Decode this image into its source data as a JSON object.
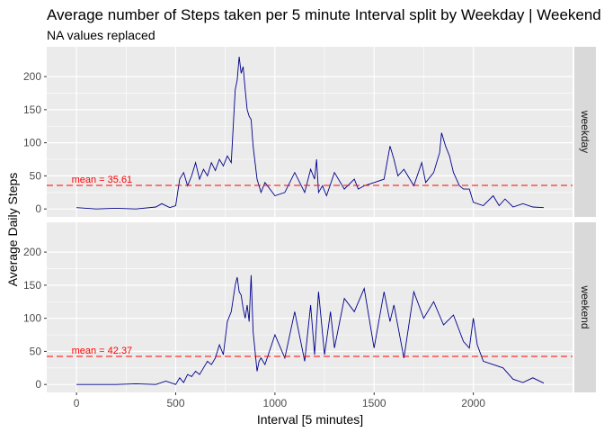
{
  "chart_data": {
    "type": "line",
    "title": "Average number of Steps taken per 5 minute Interval split by Weekday | Weekend",
    "subtitle": "NA values replaced",
    "xlabel": "Interval [5 minutes]",
    "ylabel": "Average Daily Steps",
    "xlim": [
      -150,
      2500
    ],
    "ylim": [
      -12,
      245
    ],
    "x_ticks": [
      0,
      500,
      1000,
      1500,
      2000
    ],
    "y_ticks": [
      0,
      50,
      100,
      150,
      200
    ],
    "grid": true,
    "colors": {
      "line": "#00008b",
      "mean_line": "#ff0000",
      "panel_bg": "#ebebeb",
      "strip_bg": "#d9d9d9",
      "grid": "#ffffff"
    },
    "panels": [
      {
        "facet": "weekday",
        "mean": 35.61,
        "annotation": "mean = 35.61",
        "x": [
          0,
          100,
          200,
          300,
          400,
          430,
          470,
          500,
          520,
          540,
          560,
          580,
          600,
          620,
          640,
          660,
          680,
          700,
          720,
          740,
          760,
          780,
          800,
          810,
          820,
          830,
          840,
          850,
          860,
          870,
          880,
          890,
          900,
          910,
          920,
          930,
          950,
          1000,
          1050,
          1100,
          1150,
          1180,
          1200,
          1210,
          1220,
          1240,
          1260,
          1300,
          1350,
          1400,
          1420,
          1450,
          1500,
          1550,
          1580,
          1600,
          1620,
          1650,
          1700,
          1740,
          1760,
          1800,
          1820,
          1830,
          1840,
          1860,
          1880,
          1900,
          1930,
          1950,
          1980,
          2000,
          2050,
          2100,
          2130,
          2160,
          2200,
          2250,
          2300,
          2355
        ],
        "y": [
          2,
          0,
          1,
          0,
          3,
          8,
          2,
          5,
          45,
          55,
          35,
          50,
          70,
          45,
          60,
          50,
          70,
          58,
          75,
          65,
          80,
          70,
          180,
          195,
          230,
          205,
          215,
          180,
          150,
          140,
          135,
          95,
          70,
          45,
          35,
          25,
          40,
          20,
          25,
          55,
          25,
          60,
          45,
          75,
          25,
          35,
          20,
          55,
          30,
          45,
          30,
          35,
          40,
          45,
          95,
          75,
          50,
          60,
          35,
          70,
          40,
          55,
          75,
          85,
          115,
          95,
          80,
          55,
          35,
          30,
          30,
          10,
          5,
          20,
          5,
          15,
          3,
          8,
          3,
          2
        ]
      },
      {
        "facet": "weekend",
        "mean": 42.37,
        "annotation": "mean = 42.37",
        "x": [
          0,
          100,
          200,
          300,
          400,
          450,
          500,
          520,
          540,
          560,
          580,
          600,
          620,
          640,
          660,
          680,
          700,
          720,
          740,
          760,
          780,
          800,
          810,
          820,
          830,
          840,
          850,
          860,
          870,
          880,
          890,
          900,
          910,
          920,
          930,
          950,
          1000,
          1050,
          1100,
          1150,
          1180,
          1200,
          1220,
          1250,
          1280,
          1300,
          1350,
          1400,
          1450,
          1500,
          1550,
          1580,
          1600,
          1650,
          1700,
          1750,
          1800,
          1850,
          1900,
          1950,
          1980,
          2000,
          2020,
          2050,
          2100,
          2150,
          2200,
          2250,
          2300,
          2355
        ],
        "y": [
          0,
          0,
          0,
          1,
          0,
          5,
          0,
          10,
          3,
          15,
          12,
          20,
          15,
          25,
          35,
          30,
          40,
          60,
          45,
          95,
          110,
          150,
          162,
          140,
          135,
          115,
          100,
          120,
          95,
          165,
          80,
          50,
          20,
          35,
          40,
          30,
          75,
          40,
          110,
          35,
          120,
          45,
          140,
          45,
          110,
          55,
          130,
          110,
          145,
          55,
          140,
          95,
          120,
          40,
          140,
          100,
          125,
          90,
          105,
          65,
          55,
          100,
          60,
          35,
          30,
          25,
          8,
          3,
          10,
          2
        ]
      }
    ]
  }
}
